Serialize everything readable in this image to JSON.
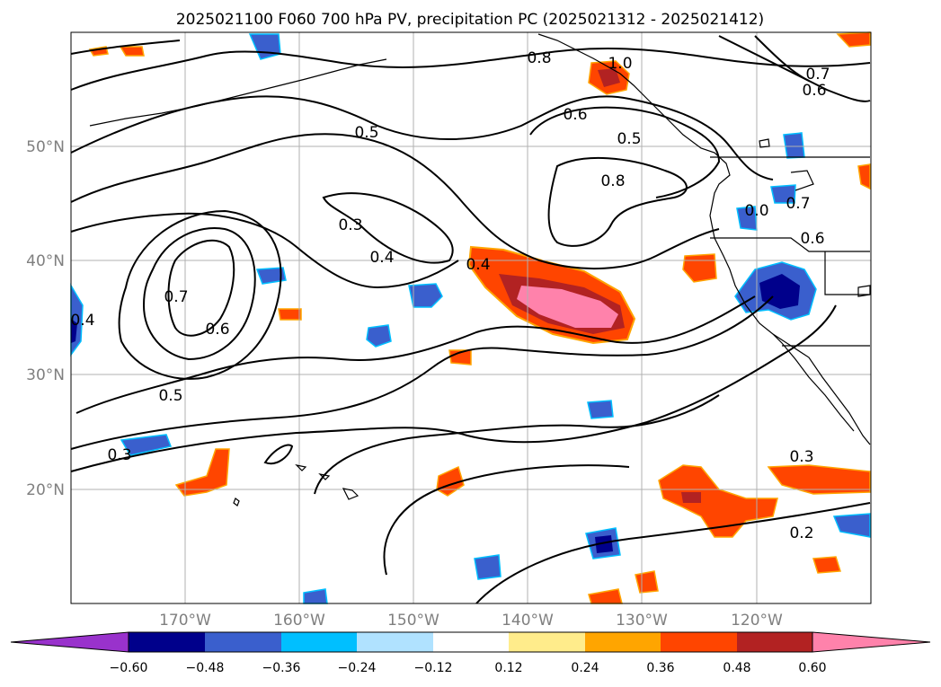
{
  "map": {
    "title": "2025021100 F060 700 hPa PV, precipitation PC (2025021312 - 2025021412)",
    "lat_labels": [
      "50°N",
      "40°N",
      "30°N",
      "20°N"
    ],
    "lon_labels": [
      "170°W",
      "160°W",
      "150°W",
      "140°W",
      "130°W",
      "120°W"
    ],
    "contour_labels": [
      "0.8",
      "1.0",
      "0.7",
      "0.6",
      "0.5",
      "0.6",
      "0.5",
      "0.8",
      "0.3",
      "0.4",
      "0.4",
      "0.7",
      "0.6",
      "0.5",
      "0.3",
      "0.4",
      "0.0",
      "0.7",
      "0.6",
      "0.3",
      "0.2"
    ]
  },
  "colorbar": {
    "ticks": [
      "−0.60",
      "−0.48",
      "−0.36",
      "−0.24",
      "−0.12",
      "0.12",
      "0.24",
      "0.36",
      "0.48",
      "0.60"
    ],
    "colors": [
      "#9932cc",
      "#00008b",
      "#3a5fcd",
      "#00bfff",
      "#b0e2ff",
      "#ffffff",
      "#ffec8b",
      "#ffa500",
      "#ff4500",
      "#b22222",
      "#ff82ab"
    ]
  }
}
